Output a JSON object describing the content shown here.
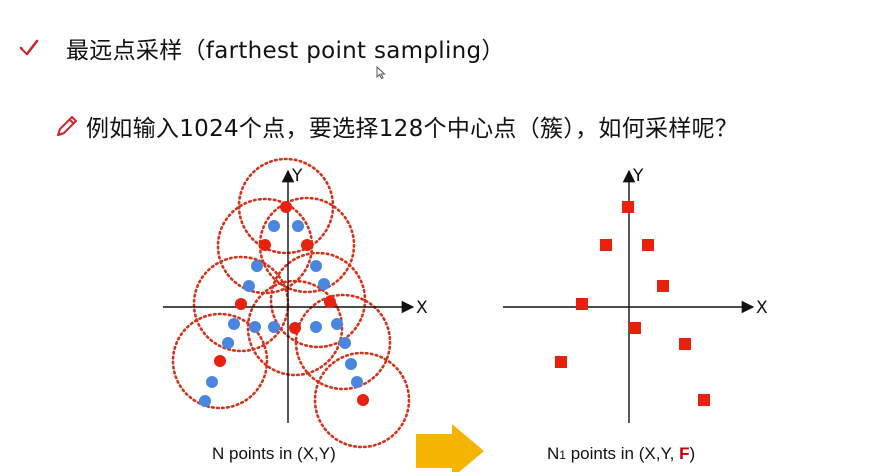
{
  "heading": {
    "title": "最远点采样（farthest point sampling）",
    "subtitle": "例如输入1024个点，要选择128个中心点（簇），如何采样呢？"
  },
  "icons": {
    "title_icon": "checkmark-icon",
    "subtitle_icon": "pencil-icon",
    "cursor_icon": "mouse-cursor-icon",
    "transition_icon": "arrow-right-icon"
  },
  "colors": {
    "red": "#e8200e",
    "blue": "#4a86e0",
    "circle": "#d4331b",
    "arrow": "#f5b400",
    "caption_red": "#c00000"
  },
  "left_panel": {
    "x_axis_label": "X",
    "y_axis_label": "Y",
    "caption": "N points in (X,Y)"
  },
  "right_panel": {
    "x_axis_label": "X",
    "y_axis_label": "Y",
    "caption_prefix": "N",
    "caption_sub": "1",
    "caption_mid": " points in (X,Y, ",
    "caption_feature": "F",
    "caption_suffix": ")"
  }
}
